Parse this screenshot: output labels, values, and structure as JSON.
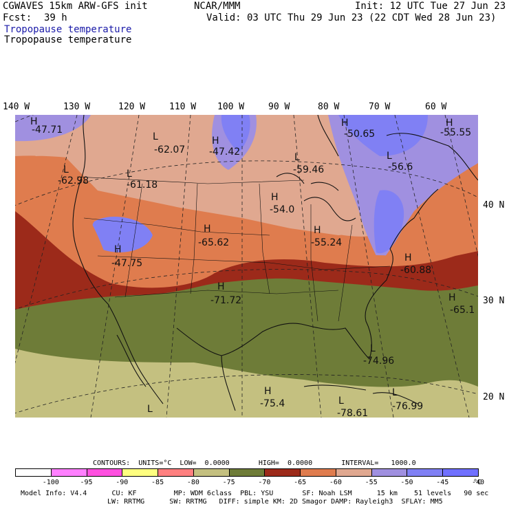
{
  "header": {
    "model": "CGWAVES 15km ARW-GFS init",
    "org": "NCAR/MMM",
    "init": "Init: 12 UTC Tue 27 Jun 23",
    "fcst_label": "Fcst:",
    "fcst_value": "39 h",
    "valid": "Valid: 03 UTC Thu 29 Jun 23 (22 CDT Wed 28 Jun 23)",
    "field_colored": "Tropopause temperature",
    "field_plain": "Tropopause temperature"
  },
  "longitude_labels": [
    "140 W",
    "130 W",
    "120 W",
    "110 W",
    "100 W",
    "90 W",
    "80 W",
    "70 W",
    "60 W"
  ],
  "latitude_labels": [
    "40 N",
    "30 N",
    "20 N"
  ],
  "map_labels": [
    {
      "type": "H",
      "value": "-47.71"
    },
    {
      "type": "L",
      "value": "-62.07"
    },
    {
      "type": "H",
      "value": "-47.42"
    },
    {
      "type": "H",
      "value": "-50.65"
    },
    {
      "type": "H",
      "value": "-55.55"
    },
    {
      "type": "L",
      "value": "-59.46"
    },
    {
      "type": "L",
      "value": "-56.6"
    },
    {
      "type": "L",
      "value": "-62.98"
    },
    {
      "type": "L",
      "value": "-61.18"
    },
    {
      "type": "H",
      "value": "-54.0"
    },
    {
      "type": "H",
      "value": "-65.62"
    },
    {
      "type": "H",
      "value": "-55.24"
    },
    {
      "type": "H",
      "value": "-47.75"
    },
    {
      "type": "H",
      "value": "-60.88"
    },
    {
      "type": "H",
      "value": "-71.72"
    },
    {
      "type": "H",
      "value": "-65.1"
    },
    {
      "type": "L",
      "value": "-74.96"
    },
    {
      "type": "H",
      "value": "-75.4"
    },
    {
      "type": "L",
      "value": "-78.61"
    },
    {
      "type": "L",
      "value": "-76.99"
    },
    {
      "type": "L",
      "value": ""
    }
  ],
  "contours_line": "CONTOURS:  UNITS=°C  LOW=  0.0000       HIGH=  0.0000       INTERVAL=   1000.0",
  "colorbar": {
    "colors": [
      "#ffffff",
      "#ff80ff",
      "#ff50e0",
      "#ffff80",
      "#ff8080",
      "#c4c080",
      "#6e7c38",
      "#9c2a1a",
      "#df7c4e",
      "#e0a890",
      "#a090e0",
      "#8080f4",
      "#7070ff"
    ],
    "labels": [
      "-100",
      "-95",
      "-90",
      "-85",
      "-80",
      "-75",
      "-70",
      "-65",
      "-60",
      "-55",
      "-50",
      "-45",
      "-40"
    ],
    "unit": "°C"
  },
  "footer": {
    "line1": "Model Info: V4.4      CU: KF         MP: WDM 6class  PBL: YSU       SF: Noah LSM      15 km    51 levels   90 sec",
    "line2": "LW: RRTMG      SW: RRTMG   DIFF: simple KM: 2D Smagor DAMP: Rayleigh3  SFLAY: MM5"
  }
}
